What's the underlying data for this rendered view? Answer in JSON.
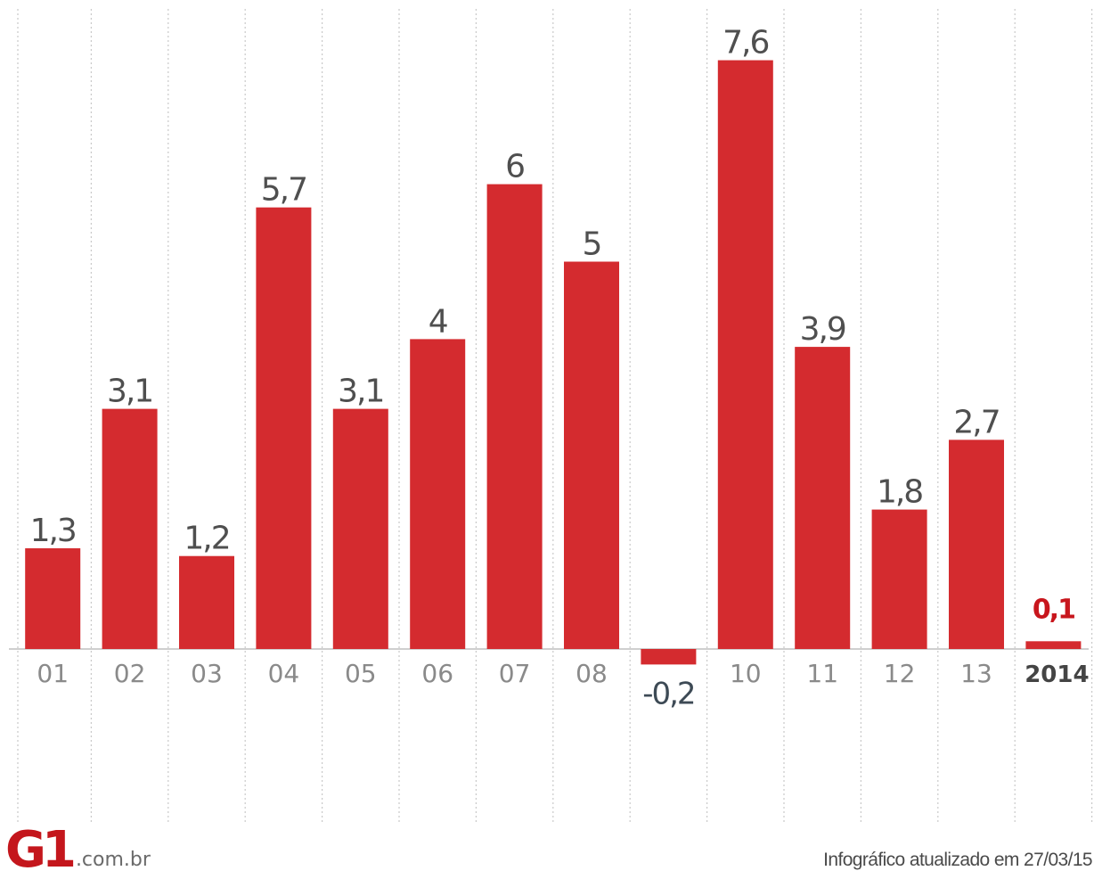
{
  "chart_data": {
    "type": "bar",
    "categories": [
      "01",
      "02",
      "03",
      "04",
      "05",
      "06",
      "07",
      "08",
      "",
      "10",
      "11",
      "12",
      "13",
      "2014"
    ],
    "values": [
      1.3,
      3.1,
      1.2,
      5.7,
      3.1,
      4,
      6,
      5,
      -0.2,
      7.6,
      3.9,
      1.8,
      2.7,
      0.1
    ],
    "value_labels": [
      "1,3",
      "3,1",
      "1,2",
      "5,7",
      "3,1",
      "4",
      "6",
      "5",
      "-0,2",
      "7,6",
      "3,9",
      "1,8",
      "2,7",
      "0,1"
    ],
    "highlight_category": "2014",
    "grid": "vertical dotted separators",
    "legend": "none",
    "colors": {
      "bar": "#d42b2f",
      "value_label": "#4f4f4f",
      "negative_label": "#3d4a55",
      "highlight_label": "#c8161d",
      "axis_label": "#8a8a8a",
      "highlight_axis_label": "#444444",
      "baseline": "#cfcfcf",
      "grid": "#c9c9c9"
    }
  },
  "branding": {
    "logo": "G1",
    "domain": ".com.br"
  },
  "footer": {
    "note": "Infográfico atualizado em 27/03/15"
  }
}
